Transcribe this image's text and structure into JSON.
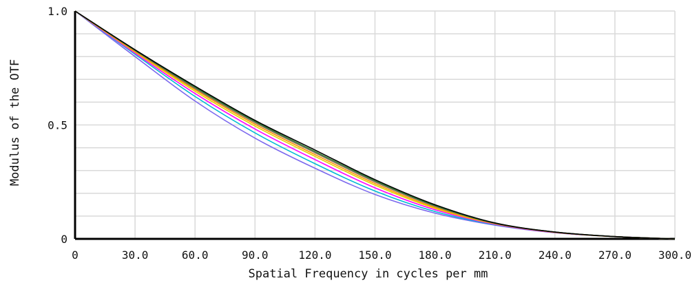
{
  "chart_data": {
    "type": "line",
    "xlabel": "Spatial Frequency in cycles per mm",
    "ylabel": "Modulus of the OTF",
    "xlim": [
      0,
      300
    ],
    "ylim": [
      0,
      1
    ],
    "x_ticks": [
      "0",
      "30.0",
      "60.0",
      "90.0",
      "120.0",
      "150.0",
      "180.0",
      "210.0",
      "240.0",
      "270.0",
      "300.0"
    ],
    "y_ticks": [
      {
        "value": 0,
        "label": "0"
      },
      {
        "value": 0.5,
        "label": "0.5"
      },
      {
        "value": 1.0,
        "label": "1.0"
      }
    ],
    "grid": true,
    "x": [
      0,
      30,
      60,
      90,
      120,
      150,
      180,
      210,
      240,
      270,
      300
    ],
    "series": [
      {
        "color": "#000000",
        "values": [
          1.0,
          0.83,
          0.67,
          0.52,
          0.39,
          0.26,
          0.15,
          0.07,
          0.03,
          0.01,
          0.0
        ]
      },
      {
        "color": "#2e7d32",
        "values": [
          1.0,
          0.828,
          0.665,
          0.515,
          0.383,
          0.255,
          0.146,
          0.069,
          0.03,
          0.01,
          0.0
        ]
      },
      {
        "color": "#8d6e63",
        "values": [
          1.0,
          0.826,
          0.66,
          0.51,
          0.378,
          0.25,
          0.143,
          0.068,
          0.03,
          0.01,
          0.0
        ]
      },
      {
        "color": "#ff9800",
        "values": [
          1.0,
          0.823,
          0.655,
          0.503,
          0.37,
          0.243,
          0.138,
          0.067,
          0.029,
          0.01,
          0.0
        ]
      },
      {
        "color": "#e6d000",
        "values": [
          1.0,
          0.82,
          0.648,
          0.495,
          0.362,
          0.236,
          0.134,
          0.066,
          0.029,
          0.01,
          0.0
        ]
      },
      {
        "color": "#ff00ff",
        "values": [
          1.0,
          0.815,
          0.638,
          0.482,
          0.348,
          0.224,
          0.128,
          0.064,
          0.028,
          0.01,
          0.0
        ]
      },
      {
        "color": "#00bcd4",
        "values": [
          1.0,
          0.81,
          0.625,
          0.465,
          0.33,
          0.21,
          0.12,
          0.062,
          0.028,
          0.01,
          0.0
        ]
      },
      {
        "color": "#7b68ee",
        "values": [
          1.0,
          0.8,
          0.605,
          0.442,
          0.31,
          0.195,
          0.113,
          0.06,
          0.027,
          0.01,
          0.0
        ]
      }
    ]
  }
}
